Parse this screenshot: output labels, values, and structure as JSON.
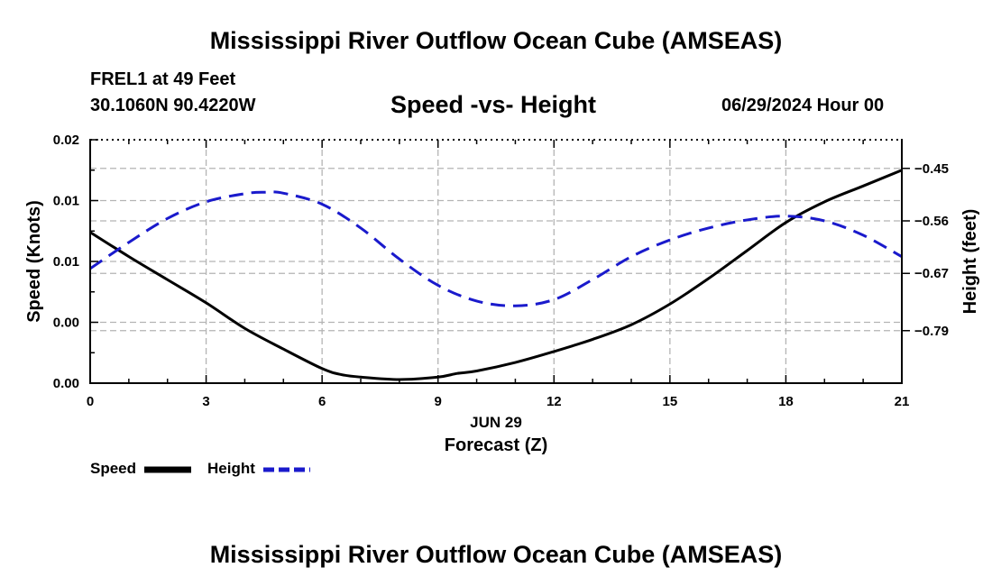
{
  "header": {
    "title": "Mississippi River Outflow Ocean Cube (AMSEAS)",
    "station": "FREL1 at 49 Feet",
    "coordinates": "30.1060N  90.4220W",
    "datetime": "06/29/2024 Hour 00"
  },
  "footer": {
    "title": "Mississippi River Outflow Ocean Cube (AMSEAS)"
  },
  "colors": {
    "speed": "#000000",
    "height": "#1a1acc",
    "grid": "#b4b4b4"
  },
  "chart_data": {
    "type": "line",
    "title": "Speed -vs- Height",
    "xlabel": "Forecast (Z)",
    "date_label": "JUN 29",
    "ylabel": "Speed (Knots)",
    "y2label": "Height (feet)",
    "x_ticks": [
      0,
      3,
      6,
      9,
      12,
      15,
      18,
      21
    ],
    "xlim": [
      0,
      21
    ],
    "y_ticks": [
      0,
      0.005,
      0.01,
      0.015,
      0.02
    ],
    "y_tick_labels": [
      "0.00",
      "0.00",
      "0.01",
      "0.01",
      "0.02"
    ],
    "ylim": [
      0,
      0.02
    ],
    "y2_ticks": [
      -0.45,
      -0.56,
      -0.67,
      -0.79
    ],
    "y2_tick_labels": [
      "-0.45",
      "-0.56",
      "-0.67",
      "-0.79"
    ],
    "y2lim": [
      -0.9,
      -0.39
    ],
    "grid": true,
    "legend": [
      {
        "name": "Speed",
        "style": "solid"
      },
      {
        "name": "Height",
        "style": "dashed"
      }
    ],
    "series": [
      {
        "name": "Speed",
        "axis": "left",
        "x": [
          0,
          1,
          2,
          3,
          4,
          5,
          6,
          6.5,
          7,
          8,
          9,
          9.5,
          10,
          11,
          12,
          13,
          14,
          15,
          16,
          17,
          18,
          19,
          20,
          21
        ],
        "values": [
          0.0124,
          0.0104,
          0.0085,
          0.0066,
          0.0045,
          0.0028,
          0.0012,
          0.0007,
          0.0005,
          0.0003,
          0.0005,
          0.0008,
          0.001,
          0.0017,
          0.0026,
          0.0036,
          0.0048,
          0.0065,
          0.0086,
          0.0109,
          0.0132,
          0.0149,
          0.0162,
          0.0175
        ]
      },
      {
        "name": "Height",
        "axis": "right",
        "x": [
          0,
          1,
          2,
          3,
          4,
          4.5,
          5,
          6,
          7,
          8,
          9,
          10,
          11,
          12,
          13,
          14,
          15,
          16,
          17,
          18,
          19,
          20,
          21
        ],
        "values": [
          -0.66,
          -0.605,
          -0.555,
          -0.52,
          -0.503,
          -0.5,
          -0.502,
          -0.525,
          -0.575,
          -0.64,
          -0.695,
          -0.728,
          -0.738,
          -0.725,
          -0.683,
          -0.635,
          -0.6,
          -0.575,
          -0.558,
          -0.55,
          -0.56,
          -0.59,
          -0.635
        ]
      }
    ]
  }
}
